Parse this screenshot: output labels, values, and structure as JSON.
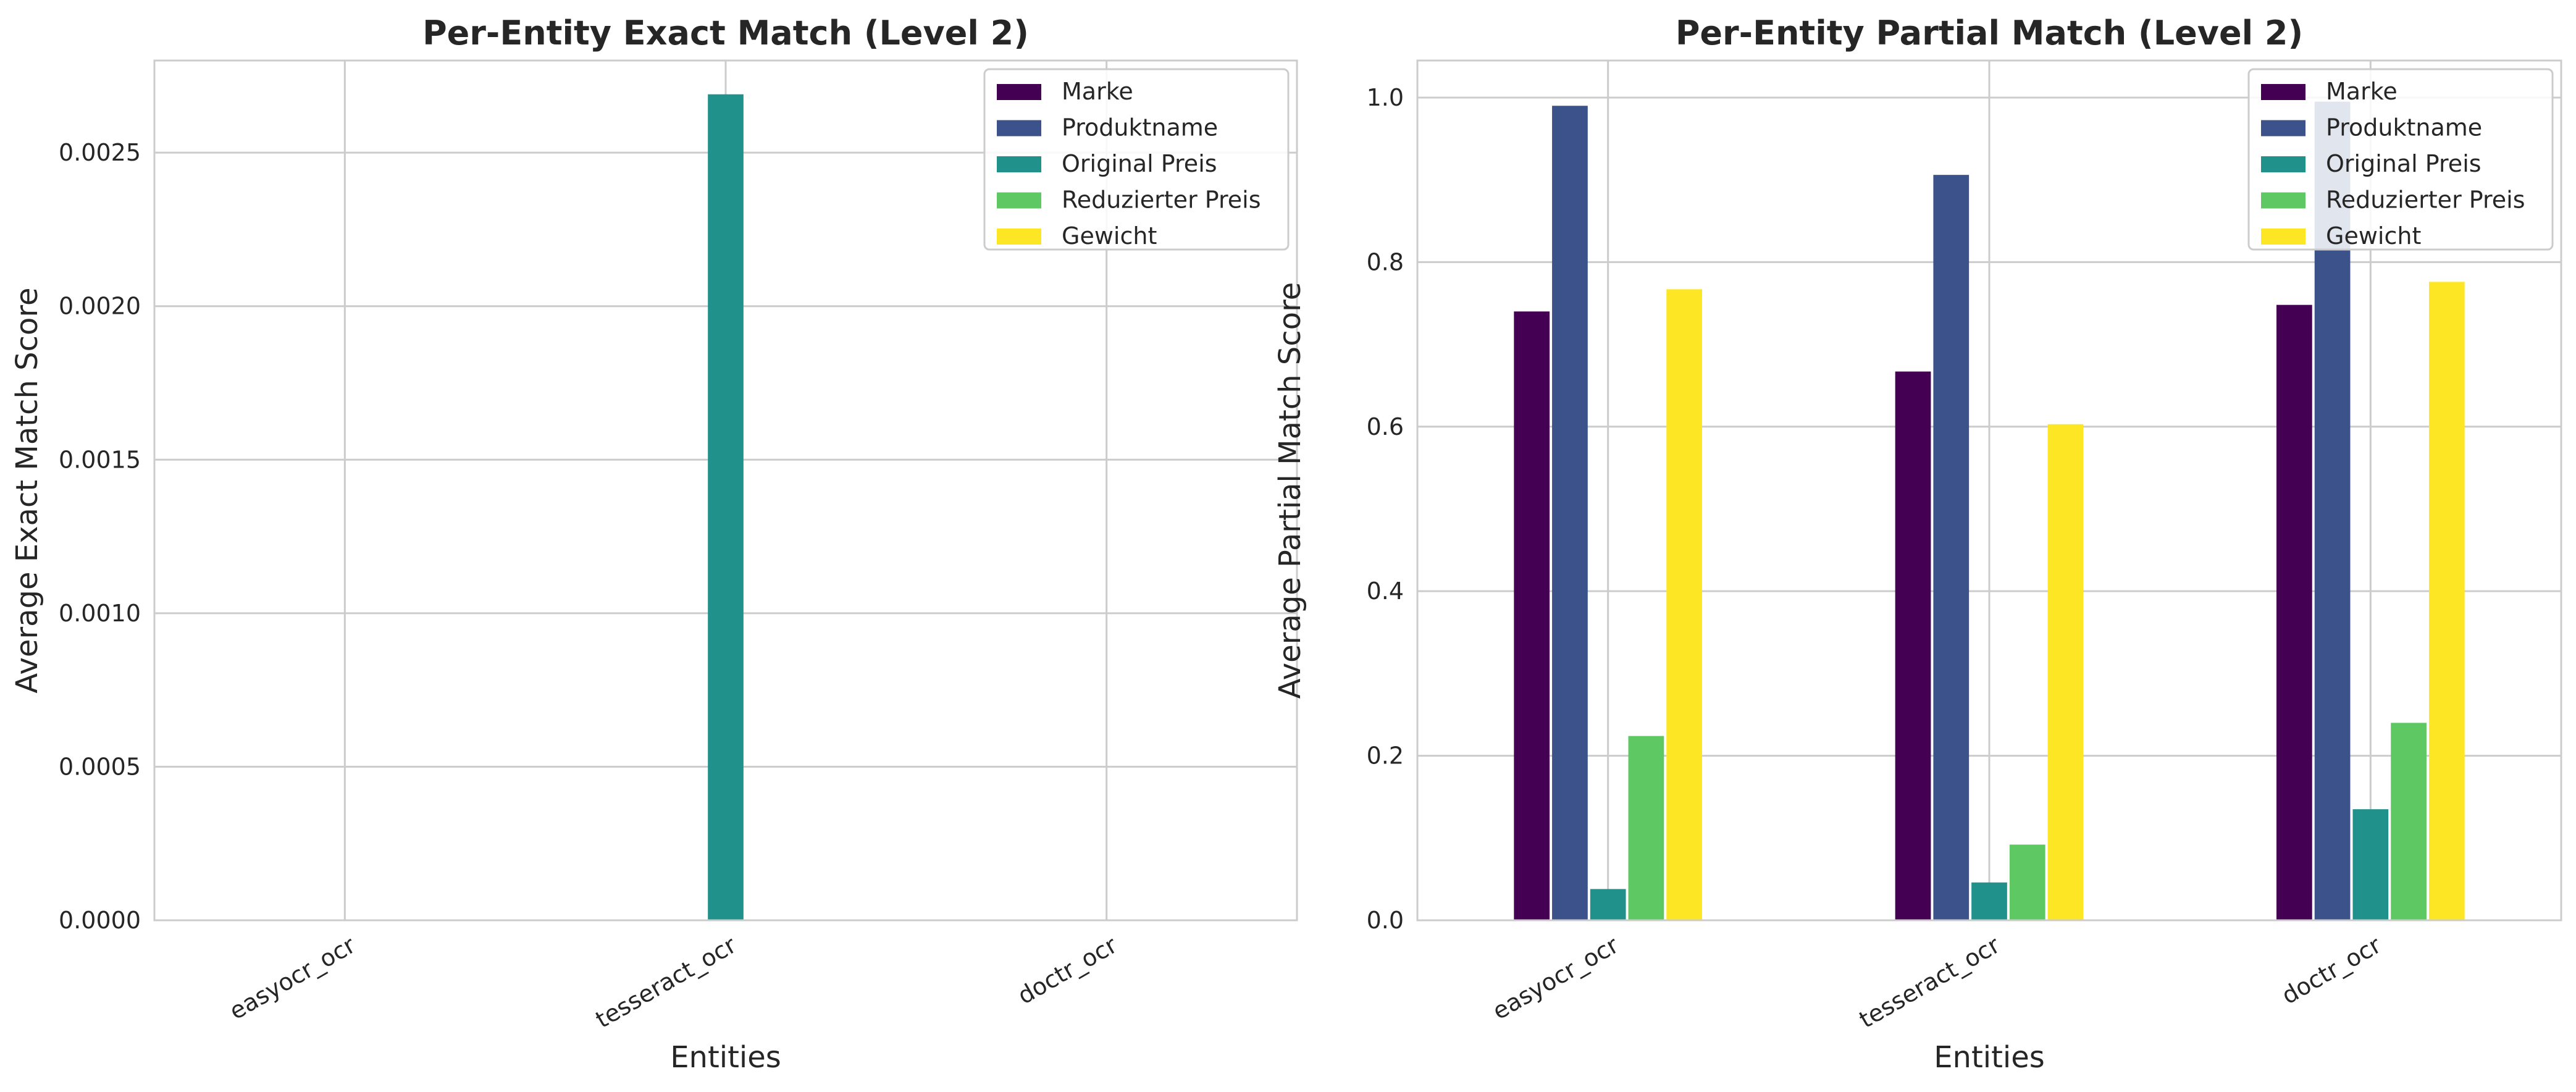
{
  "colors": {
    "series": [
      "#440154",
      "#3b528b",
      "#21918c",
      "#5ec962",
      "#fde725"
    ],
    "grid": "#cccccc",
    "frame": "#cccccc"
  },
  "chart_data": [
    {
      "type": "bar",
      "title": "Per-Entity Exact Match (Level 2)",
      "xlabel": "Entities",
      "ylabel": "Average Exact Match Score",
      "categories": [
        "easyocr_ocr",
        "tesseract_ocr",
        "doctr_ocr"
      ],
      "ylim": [
        0,
        0.0028
      ],
      "yticks": [
        0,
        0.0005,
        0.001,
        0.0015,
        0.002,
        0.0025
      ],
      "ytick_labels": [
        "0.0000",
        "0.0005",
        "0.0010",
        "0.0015",
        "0.0020",
        "0.0025"
      ],
      "grid": true,
      "legend_position": "top-right",
      "series": [
        {
          "name": "Marke",
          "values": [
            0,
            0,
            0
          ]
        },
        {
          "name": "Produktname",
          "values": [
            0,
            0,
            0
          ]
        },
        {
          "name": "Original Preis",
          "values": [
            0,
            0.00269,
            0
          ]
        },
        {
          "name": "Reduzierter Preis",
          "values": [
            0,
            0,
            0
          ]
        },
        {
          "name": "Gewicht",
          "values": [
            0,
            0,
            0
          ]
        }
      ]
    },
    {
      "type": "bar",
      "title": "Per-Entity Partial Match (Level 2)",
      "xlabel": "Entities",
      "ylabel": "Average Partial Match Score",
      "categories": [
        "easyocr_ocr",
        "tesseract_ocr",
        "doctr_ocr"
      ],
      "ylim": [
        0,
        1.045
      ],
      "yticks": [
        0,
        0.2,
        0.4,
        0.6,
        0.8,
        1.0
      ],
      "ytick_labels": [
        "0.0",
        "0.2",
        "0.4",
        "0.6",
        "0.8",
        "1.0"
      ],
      "grid": true,
      "legend_position": "top-right",
      "series": [
        {
          "name": "Marke",
          "values": [
            0.74,
            0.667,
            0.748
          ]
        },
        {
          "name": "Produktname",
          "values": [
            0.99,
            0.906,
            0.995
          ]
        },
        {
          "name": "Original Preis",
          "values": [
            0.038,
            0.046,
            0.135
          ]
        },
        {
          "name": "Reduzierter Preis",
          "values": [
            0.224,
            0.092,
            0.24
          ]
        },
        {
          "name": "Gewicht",
          "values": [
            0.767,
            0.603,
            0.776
          ]
        }
      ]
    }
  ]
}
